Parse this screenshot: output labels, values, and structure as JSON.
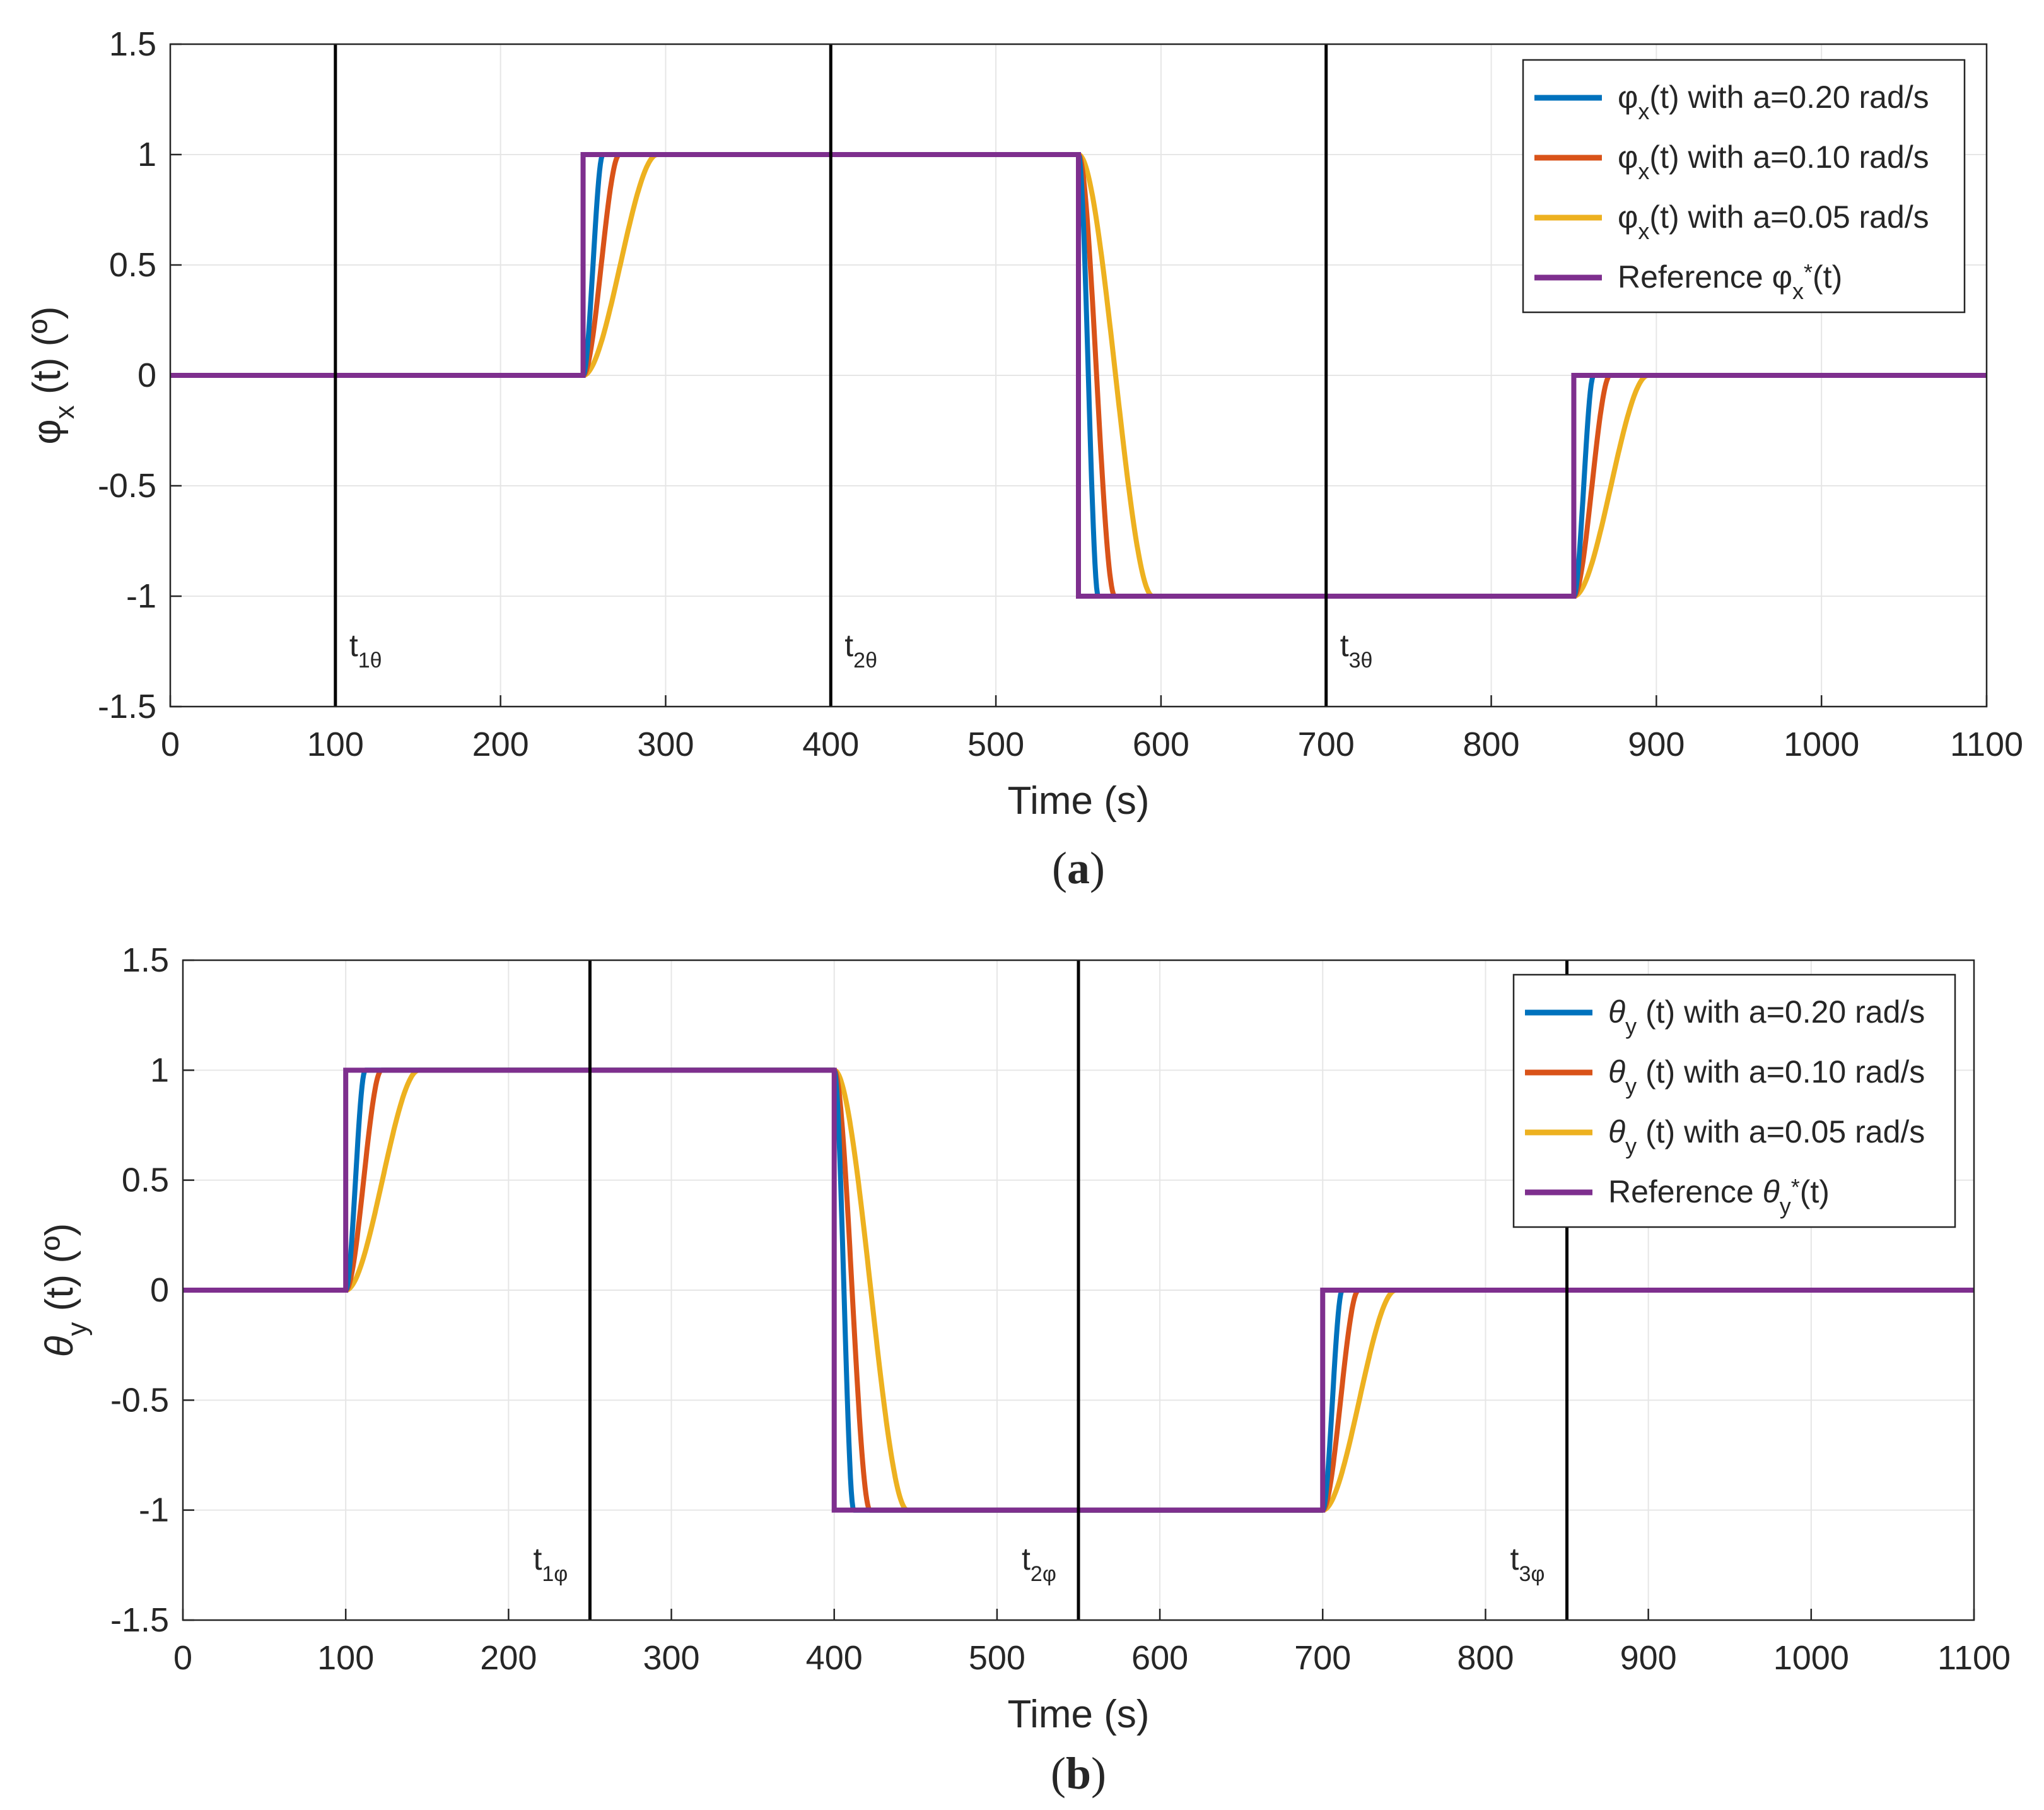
{
  "series_colors": {
    "a020": "#0072BD",
    "a010": "#D95319",
    "a005": "#EDB120",
    "reference": "#7E2F8E"
  },
  "chart_data": [
    {
      "panel": "a",
      "type": "line",
      "caption_letter": "a",
      "xlabel": "Time (s)",
      "ylabel_main": "φ",
      "ylabel_sub": "x",
      "ylabel_tail": " (t)  (º)",
      "xlim": [
        0,
        1100
      ],
      "ylim": [
        -1.5,
        1.5
      ],
      "xticks": [
        0,
        100,
        200,
        300,
        400,
        500,
        600,
        700,
        800,
        900,
        1000,
        1100
      ],
      "yticks": [
        -1.5,
        -1,
        -0.5,
        0,
        0.5,
        1,
        1.5
      ],
      "grid": true,
      "legend_position": "top-right",
      "steps": [
        {
          "t": 250,
          "value": 1
        },
        {
          "t": 550,
          "value": -1
        },
        {
          "t": 850,
          "value": 0
        }
      ],
      "initial_value": 0,
      "response_settle_times_s": {
        "a020": 12,
        "a010": 22,
        "a005": 45
      },
      "legend": [
        {
          "key": "a020",
          "sym": "φ",
          "sub": "x",
          "star": "",
          "text": "(t) with a=0.20 rad/s"
        },
        {
          "key": "a010",
          "sym": "φ",
          "sub": "x",
          "star": "",
          "text": "(t) with a=0.10 rad/s"
        },
        {
          "key": "a005",
          "sym": "φ",
          "sub": "x",
          "star": "",
          "text": "(t) with a=0.05 rad/s"
        },
        {
          "key": "reference",
          "prefix": "Reference ",
          "sym": "φ",
          "sub": "x",
          "star": "*",
          "text": "(t)"
        }
      ],
      "markers": [
        {
          "t": 100,
          "label": "t",
          "sub": "1θ"
        },
        {
          "t": 400,
          "label": "t",
          "sub": "2θ"
        },
        {
          "t": 700,
          "label": "t",
          "sub": "3θ"
        }
      ]
    },
    {
      "panel": "b",
      "type": "line",
      "caption_letter": "b",
      "xlabel": "Time (s)",
      "ylabel_main": "θ",
      "ylabel_sub": "y",
      "ylabel_tail": " (t)  (º)",
      "xlim": [
        0,
        1100
      ],
      "ylim": [
        -1.5,
        1.5
      ],
      "xticks": [
        0,
        100,
        200,
        300,
        400,
        500,
        600,
        700,
        800,
        900,
        1000,
        1100
      ],
      "yticks": [
        -1.5,
        -1,
        -0.5,
        0,
        0.5,
        1,
        1.5
      ],
      "grid": true,
      "legend_position": "top-right",
      "steps": [
        {
          "t": 100,
          "value": 1
        },
        {
          "t": 400,
          "value": -1
        },
        {
          "t": 700,
          "value": 0
        }
      ],
      "initial_value": 0,
      "response_settle_times_s": {
        "a020": 12,
        "a010": 22,
        "a005": 45
      },
      "legend": [
        {
          "key": "a020",
          "sym": "θ",
          "sub": "y",
          "star": "",
          "text": " (t) with a=0.20 rad/s"
        },
        {
          "key": "a010",
          "sym": "θ",
          "sub": "y",
          "star": "",
          "text": " (t) with a=0.10 rad/s"
        },
        {
          "key": "a005",
          "sym": "θ",
          "sub": "y",
          "star": "",
          "text": " (t) with a=0.05 rad/s"
        },
        {
          "key": "reference",
          "prefix": "Reference ",
          "sym": "θ",
          "sub": "y",
          "star": "*",
          "text": "(t)"
        }
      ],
      "markers": [
        {
          "t": 250,
          "label": "t",
          "sub": "1φ"
        },
        {
          "t": 550,
          "label": "t",
          "sub": "2φ"
        },
        {
          "t": 850,
          "label": "t",
          "sub": "3φ"
        }
      ]
    }
  ]
}
